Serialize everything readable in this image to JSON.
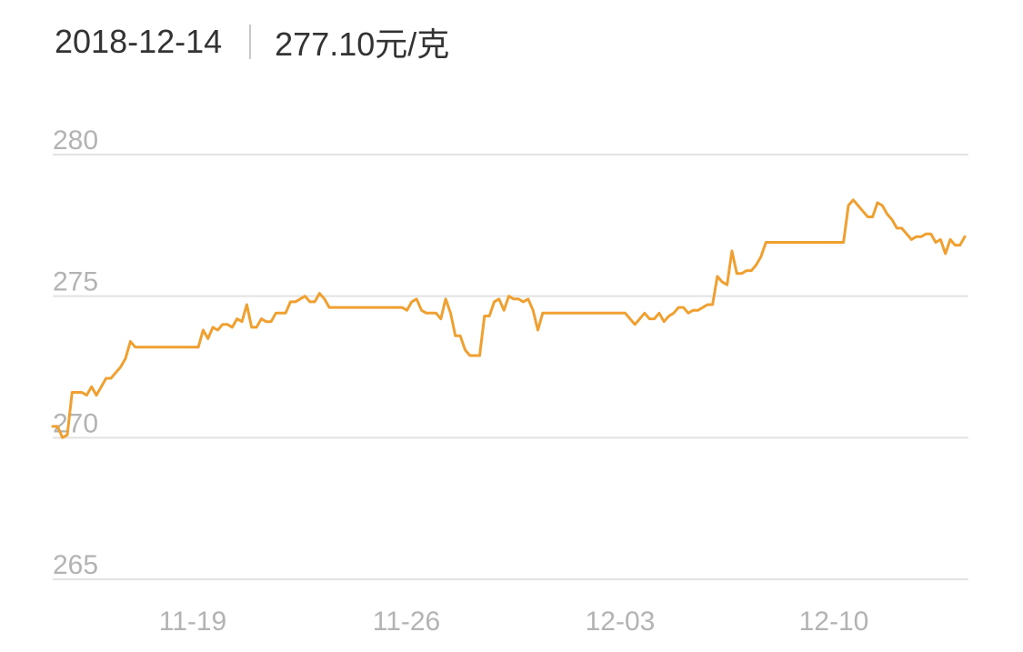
{
  "header": {
    "date": "2018-12-14",
    "price": "277.10元/克"
  },
  "colors": {
    "line": "#f0a030",
    "grid": "#e2e2e2",
    "tick_text": "#b3b3b3",
    "header_text": "#333333"
  },
  "chart_data": {
    "type": "line",
    "title": "",
    "xlabel": "",
    "ylabel": "",
    "ylim": [
      265,
      280
    ],
    "y_ticks": [
      280,
      275,
      270,
      265
    ],
    "x_tick_labels": [
      "11-19",
      "11-26",
      "12-03",
      "12-10"
    ],
    "grid": "horizontal",
    "series": [
      {
        "values": [
          270.4,
          270.4,
          270.0,
          270.1,
          271.6,
          271.6,
          271.6,
          271.5,
          271.8,
          271.5,
          271.8,
          272.1,
          272.1,
          272.3,
          272.5,
          272.8,
          273.4,
          273.2,
          273.2,
          273.2,
          273.2,
          273.2,
          273.2,
          273.2,
          273.2,
          273.2,
          273.2,
          273.2,
          273.2,
          273.2,
          273.2,
          273.8,
          273.5,
          273.9,
          273.8,
          274.0,
          274.0,
          273.9,
          274.2,
          274.1,
          274.7,
          273.9,
          273.9,
          274.2,
          274.1,
          274.1,
          274.4,
          274.4,
          274.4,
          274.8,
          274.8,
          274.9,
          275.0,
          274.8,
          274.8,
          275.1,
          274.9,
          274.6,
          274.6,
          274.6,
          274.6,
          274.6,
          274.6,
          274.6,
          274.6,
          274.6,
          274.6,
          274.6,
          274.6,
          274.6,
          274.6,
          274.6,
          274.6,
          274.5,
          274.8,
          274.9,
          274.5,
          274.4,
          274.4,
          274.4,
          274.2,
          274.9,
          274.4,
          273.6,
          273.6,
          273.1,
          272.9,
          272.9,
          272.9,
          274.3,
          274.3,
          274.8,
          274.9,
          274.5,
          275.0,
          274.9,
          274.9,
          274.8,
          274.9,
          274.5,
          273.8,
          274.4,
          274.4,
          274.4,
          274.4,
          274.4,
          274.4,
          274.4,
          274.4,
          274.4,
          274.4,
          274.4,
          274.4,
          274.4,
          274.4,
          274.4,
          274.4,
          274.4,
          274.4,
          274.2,
          274.0,
          274.2,
          274.4,
          274.2,
          274.2,
          274.4,
          274.1,
          274.3,
          274.4,
          274.6,
          274.6,
          274.4,
          274.5,
          274.5,
          274.6,
          274.7,
          274.7,
          275.7,
          275.5,
          275.4,
          276.6,
          275.8,
          275.8,
          275.9,
          275.9,
          276.1,
          276.4,
          276.9,
          276.9,
          276.9,
          276.9,
          276.9,
          276.9,
          276.9,
          276.9,
          276.9,
          276.9,
          276.9,
          276.9,
          276.9,
          276.9,
          276.9,
          276.9,
          276.9,
          278.2,
          278.4,
          278.2,
          278.0,
          277.8,
          277.8,
          278.3,
          278.2,
          277.9,
          277.7,
          277.4,
          277.4,
          277.2,
          277.0,
          277.1,
          277.1,
          277.2,
          277.2,
          276.9,
          277.0,
          276.5,
          277.0,
          276.8,
          276.8,
          277.1
        ]
      }
    ]
  }
}
